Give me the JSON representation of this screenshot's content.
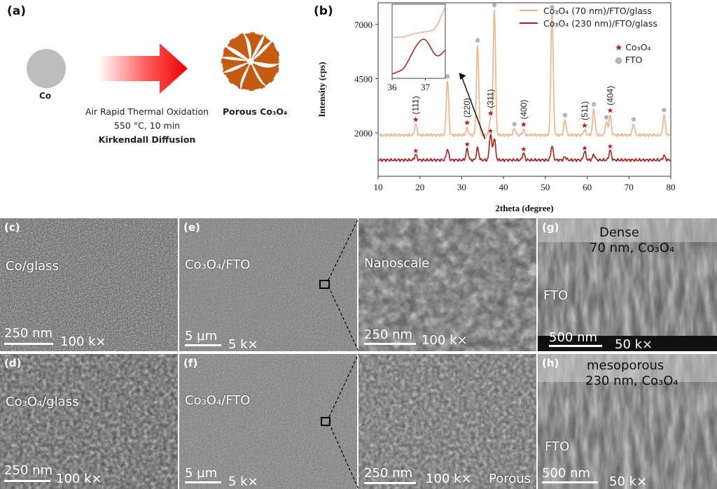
{
  "panel_a": {
    "label": "(a)",
    "co_label": "Co",
    "process_line1": "Air Rapid Thermal Oxidation",
    "process_line2": "550 °C, 10 min",
    "process_line3": "Kirkendall Diffusion",
    "product_label": "Porous Co₃O₄"
  },
  "panel_b": {
    "label": "(b)",
    "legend_series1": "Co₃O₄ (70 nm)/FTO/glass",
    "legend_series2": "Co₃O₄ (230 nm)/FTO/glass",
    "marker_legend_co3o4": "Co₃O₄",
    "marker_legend_fto": "FTO",
    "colors": {
      "series1": "#f4b183",
      "series2": "#b31b1b",
      "fto_marker": "#b5b5b5",
      "co3o4_marker": "#b31b1b"
    }
  },
  "chart_data": {
    "type": "line",
    "title": "",
    "xlabel": "2theta (degree)",
    "ylabel": "Intensity (cps)",
    "xlim": [
      10,
      80
    ],
    "ylim": [
      0,
      8000
    ],
    "xticks": [
      10,
      20,
      30,
      40,
      50,
      60,
      70,
      80
    ],
    "yticks": [
      2000,
      4500,
      7000
    ],
    "series": [
      {
        "name": "Co₃O₄ (70 nm)/FTO/glass",
        "baseline": 1900,
        "peaks": [
          {
            "x": 19.0,
            "h": 500
          },
          {
            "x": 26.6,
            "h": 2500
          },
          {
            "x": 31.3,
            "h": 300
          },
          {
            "x": 33.8,
            "h": 4100
          },
          {
            "x": 36.9,
            "h": 800
          },
          {
            "x": 37.8,
            "h": 5800
          },
          {
            "x": 42.6,
            "h": 300
          },
          {
            "x": 44.8,
            "h": 250
          },
          {
            "x": 51.6,
            "h": 5700
          },
          {
            "x": 54.7,
            "h": 700
          },
          {
            "x": 59.4,
            "h": 250
          },
          {
            "x": 61.6,
            "h": 1200
          },
          {
            "x": 64.6,
            "h": 600
          },
          {
            "x": 65.5,
            "h": 900
          },
          {
            "x": 71.1,
            "h": 500
          },
          {
            "x": 78.4,
            "h": 900
          }
        ]
      },
      {
        "name": "Co₃O₄ (230 nm)/FTO/glass",
        "baseline": 750,
        "peaks": [
          {
            "x": 19.0,
            "h": 250
          },
          {
            "x": 26.6,
            "h": 500
          },
          {
            "x": 31.3,
            "h": 500
          },
          {
            "x": 33.8,
            "h": 550
          },
          {
            "x": 36.9,
            "h": 1200
          },
          {
            "x": 37.8,
            "h": 1000
          },
          {
            "x": 44.8,
            "h": 300
          },
          {
            "x": 51.6,
            "h": 650
          },
          {
            "x": 54.7,
            "h": 150
          },
          {
            "x": 59.4,
            "h": 400
          },
          {
            "x": 61.6,
            "h": 250
          },
          {
            "x": 65.5,
            "h": 450
          },
          {
            "x": 78.4,
            "h": 200
          }
        ]
      }
    ],
    "peak_labels": [
      {
        "x": 19.0,
        "text": "(111)"
      },
      {
        "x": 31.3,
        "text": "(220)"
      },
      {
        "x": 36.9,
        "text": "(311)"
      },
      {
        "x": 44.8,
        "text": "(400)"
      },
      {
        "x": 59.4,
        "text": "(511)"
      },
      {
        "x": 65.5,
        "text": "(404)"
      }
    ],
    "inset": {
      "xlim": [
        36,
        37.6
      ],
      "xticks": [
        36,
        37
      ]
    }
  },
  "sem_panels": [
    {
      "id": "c",
      "label": "(c)",
      "caption": "Co/glass",
      "scale": "250 nm",
      "mag": "100 k×"
    },
    {
      "id": "e",
      "label": "(e)",
      "caption": "Co₃O₄/FTO",
      "scale": "5 µm",
      "mag": "5 k×"
    },
    {
      "id": "e2",
      "label": "",
      "caption": "Nanoscale",
      "scale": "250 nm",
      "mag": "100 k×"
    },
    {
      "id": "g",
      "label": "(g)",
      "caption": "Dense",
      "caption2": "70 nm, Co₃O₄",
      "caption3": "FTO",
      "scale": "500 nm",
      "mag": "50 k×"
    },
    {
      "id": "d",
      "label": "(d)",
      "caption": "Co₃O₄/glass",
      "scale": "250 nm",
      "mag": "100 k×"
    },
    {
      "id": "f",
      "label": "(f)",
      "caption": "Co₃O₄/FTO",
      "scale": "5 µm",
      "mag": "5 k×"
    },
    {
      "id": "f2",
      "label": "",
      "caption": "Porous",
      "scale": "250 nm",
      "mag": "100 k×"
    },
    {
      "id": "h",
      "label": "(h)",
      "caption": "mesoporous",
      "caption2": "230 nm, Co₃O₄",
      "caption3": "FTO",
      "scale": "500 nm",
      "mag": "50 k×"
    }
  ]
}
